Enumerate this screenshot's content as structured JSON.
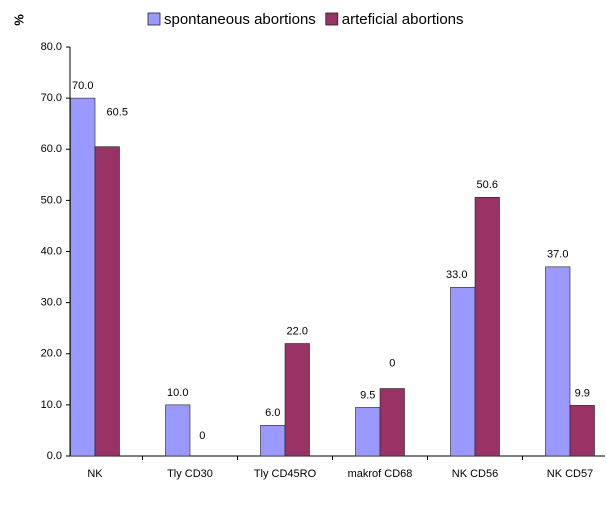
{
  "chart_data": {
    "type": "bar",
    "y_label": "%",
    "categories": [
      "NK",
      "Tly CD30",
      "Tly CD45RO",
      "makrof CD68",
      "NK CD56",
      "NK CD57"
    ],
    "series": [
      {
        "name": "spontaneous abortions",
        "color": "#9999ff",
        "values": [
          70,
          10,
          6,
          9.5,
          33,
          37
        ],
        "value_labels": [
          "70.0",
          "10.0",
          "6.0",
          "9.5",
          "33.0",
          "37.0"
        ]
      },
      {
        "name": "arteficial abortions",
        "color": "#993366",
        "values": [
          60.5,
          0,
          22,
          13.2,
          50.6,
          9.9
        ],
        "value_labels": [
          "60.5",
          "0",
          "22.0",
          null,
          "50.6",
          "9.9"
        ]
      }
    ],
    "annotations": [
      {
        "text": "0"
      }
    ],
    "ylim": [
      0,
      80
    ],
    "yticks": [
      {
        "value": 0,
        "label": "0.0"
      },
      {
        "value": 10,
        "label": "10.0"
      },
      {
        "value": 20,
        "label": "20.0"
      },
      {
        "value": 30,
        "label": "30.0"
      },
      {
        "value": 40,
        "label": "40.0"
      },
      {
        "value": 50,
        "label": "50.0"
      },
      {
        "value": 60,
        "label": "60.0"
      },
      {
        "value": 70,
        "label": "70.0"
      },
      {
        "value": 80,
        "label": "80.0"
      }
    ],
    "grid": false
  }
}
